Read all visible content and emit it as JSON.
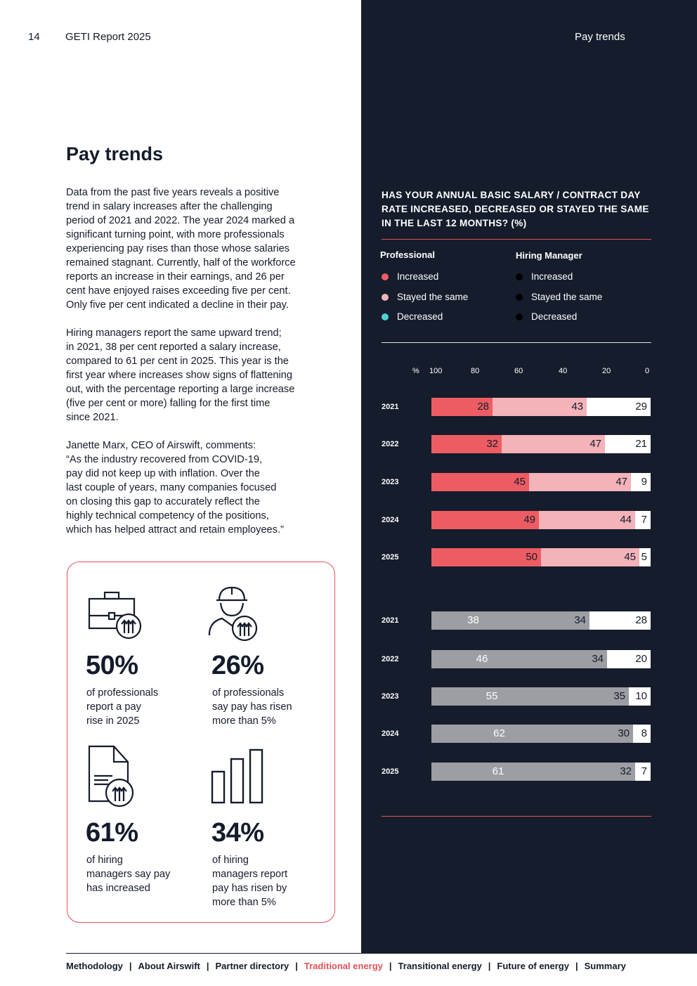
{
  "header": {
    "page_number": "14",
    "report_title": "GETI Report 2025",
    "section_label": "Pay trends"
  },
  "main": {
    "heading": "Pay trends",
    "paragraphs": [
      [
        "Data from the past five years reveals a positive",
        "trend in salary increases after the challenging",
        "period of 2021 and 2022. The year 2024 marked a",
        "significant turning point, with more professionals",
        "experiencing pay rises than those whose salaries",
        "remained stagnant. Currently, half of the workforce",
        "reports an increase in their earnings, and 26 per",
        "cent have enjoyed raises exceeding five per cent.",
        "Only five per cent indicated a decline in their pay."
      ],
      [
        "Hiring managers report the same upward trend;",
        "in 2021, 38 per cent reported a salary increase,",
        "compared to 61 per cent in 2025. This year is the",
        "first year where increases show signs of flattening",
        "out, with the percentage reporting a large increase",
        "(five per cent or more) falling for the first time",
        "since 2021."
      ],
      [
        "Janette Marx, CEO of Airswift, comments:",
        "“As the industry recovered from COVID-19,",
        "pay did not keep up with inflation. Over the",
        "last couple of years, many companies focused",
        "on closing this gap to accurately reflect the",
        "highly technical competency of the positions,",
        "which has helped attract and retain employees.”"
      ]
    ]
  },
  "stats": [
    {
      "icon": "briefcase-arrows-icon",
      "value": "50%",
      "lines": [
        "of professionals",
        "report a pay",
        "rise in 2025"
      ]
    },
    {
      "icon": "engineer-arrows-icon",
      "value": "26%",
      "lines": [
        "of professionals",
        "say pay has risen",
        "more than 5%"
      ]
    },
    {
      "icon": "document-arrows-icon",
      "value": "61%",
      "lines": [
        "of hiring",
        "managers say pay",
        "has increased"
      ]
    },
    {
      "icon": "bar-chart-icon",
      "value": "34%",
      "lines": [
        "of hiring",
        "managers report",
        "pay has risen by",
        "more than 5%"
      ]
    }
  ],
  "chart_data": {
    "type": "bar",
    "orientation": "horizontal-stacked",
    "title_lines": [
      "HAS YOUR ANNUAL BASIC SALARY / CONTRACT DAY",
      "RATE INCREASED, DECREASED OR STAYED THE SAME",
      "IN THE LAST 12 MONTHS? (%)"
    ],
    "xlabel": "%",
    "x_ticks": [
      "100",
      "80",
      "60",
      "40",
      "20",
      "0"
    ],
    "xlim": [
      0,
      100
    ],
    "legend": [
      {
        "group": "Professional",
        "items": [
          {
            "name": "Increased",
            "color": "#ee5c63"
          },
          {
            "name": "Stayed the same",
            "color": "#f4b2b9"
          },
          {
            "name": "Decreased",
            "color": "#4fd1cf"
          }
        ]
      },
      {
        "group": "Hiring Manager",
        "items": [
          {
            "name": "Increased",
            "color": "#000000"
          },
          {
            "name": "Stayed the same",
            "color": "#000000"
          },
          {
            "name": "Decreased",
            "color": "#000000"
          }
        ]
      }
    ],
    "groups": [
      {
        "group": "Professional",
        "categories": [
          "2021",
          "2022",
          "2023",
          "2024",
          "2025"
        ],
        "series": [
          {
            "name": "Increased",
            "color": "#ee5c63",
            "values": [
              28,
              32,
              45,
              49,
              50
            ]
          },
          {
            "name": "Stayed the same",
            "color": "#f4b2b9",
            "values": [
              43,
              47,
              47,
              44,
              45
            ]
          },
          {
            "name": "Decreased",
            "color": "#ffffff",
            "values": [
              29,
              21,
              9,
              7,
              5
            ]
          }
        ]
      },
      {
        "group": "Hiring Manager",
        "categories": [
          "2021",
          "2022",
          "2023",
          "2024",
          "2025"
        ],
        "series": [
          {
            "name": "Increased",
            "color": "#9c9ea3",
            "values": [
              38,
              46,
              55,
              62,
              61
            ]
          },
          {
            "name": "Stayed the same",
            "color": "#9c9ea3",
            "values": [
              34,
              34,
              35,
              30,
              32
            ]
          },
          {
            "name": "Decreased",
            "color": "#ffffff",
            "values": [
              28,
              20,
              10,
              8,
              7
            ]
          }
        ]
      }
    ]
  },
  "footer": {
    "nav": [
      {
        "label": "Methodology",
        "active": false
      },
      {
        "label": "About Airswift",
        "active": false
      },
      {
        "label": "Partner directory",
        "active": false
      },
      {
        "label": "Traditional energy",
        "active": true
      },
      {
        "label": "Transitional energy",
        "active": false
      },
      {
        "label": "Future of energy",
        "active": false
      },
      {
        "label": "Summary",
        "active": false
      }
    ],
    "separator": "|"
  }
}
